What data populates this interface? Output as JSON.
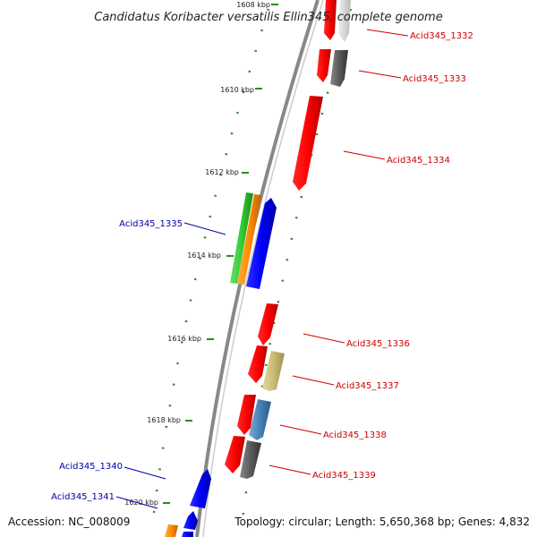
{
  "title": "Candidatus Koribacter versatilis Ellin345, complete genome",
  "accession": "Accession: NC_008009",
  "topology": "Topology: circular; Length: 5,650,368 bp; Genes: 4,832",
  "ticks": [
    {
      "label": "1608 kbp"
    },
    {
      "label": "1610 kbp"
    },
    {
      "label": "1612 kbp"
    },
    {
      "label": "1614 kbp"
    },
    {
      "label": "1616 kbp"
    },
    {
      "label": "1618 kbp"
    },
    {
      "label": "1620 kbp"
    }
  ],
  "genes": [
    {
      "label": "Acid345_1332",
      "color": "#cc0000"
    },
    {
      "label": "Acid345_1333",
      "color": "#cc0000"
    },
    {
      "label": "Acid345_1334",
      "color": "#cc0000"
    },
    {
      "label": "Acid345_1335",
      "color": "#0000aa"
    },
    {
      "label": "Acid345_1336",
      "color": "#cc0000"
    },
    {
      "label": "Acid345_1337",
      "color": "#cc0000"
    },
    {
      "label": "Acid345_1338",
      "color": "#cc0000"
    },
    {
      "label": "Acid345_1339",
      "color": "#cc0000"
    },
    {
      "label": "Acid345_1340",
      "color": "#0000aa"
    },
    {
      "label": "Acid345_1341",
      "color": "#0000aa"
    }
  ],
  "colors": {
    "forward_cds": "#ff0000",
    "reverse_cds": "#0000ff",
    "backbone": "#888888",
    "ruler": "#2e8b22",
    "grey_feature": "#555555",
    "khaki_feature": "#c8bc78",
    "steelblue_feature": "#4682b4",
    "green_feature": "#33cc33",
    "orange_feature": "#ff8c00"
  }
}
